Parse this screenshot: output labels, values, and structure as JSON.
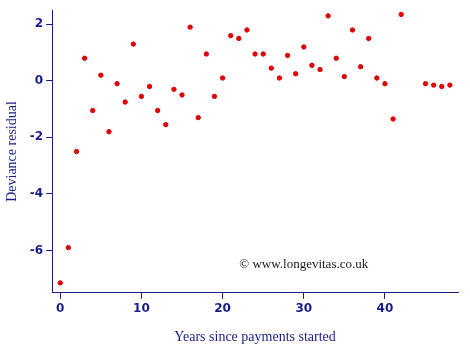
{
  "chart_data": {
    "type": "scatter",
    "x_label": "Years since payments started",
    "y_label": "Deviance residual",
    "annotation": "© www.longevitas.co.uk",
    "color": "#e00000",
    "marker": "circle",
    "grid": false,
    "x": [
      0,
      1,
      2,
      3,
      4,
      5,
      6,
      7,
      8,
      9,
      10,
      11,
      12,
      13,
      14,
      15,
      16,
      17,
      18,
      19,
      20,
      21,
      22,
      23,
      24,
      25,
      26,
      27,
      28,
      29,
      30,
      31,
      32,
      33,
      34,
      35,
      36,
      37,
      38,
      39,
      40,
      41,
      42,
      45,
      46,
      47,
      48
    ],
    "values": [
      -7.15,
      -5.9,
      -2.5,
      0.8,
      -1.05,
      0.2,
      -1.8,
      -0.1,
      -0.75,
      1.3,
      -0.55,
      -0.2,
      -1.05,
      -1.55,
      -0.3,
      -0.5,
      1.9,
      -1.3,
      0.95,
      -0.55,
      0.1,
      1.6,
      1.5,
      1.8,
      0.95,
      0.95,
      0.45,
      0.1,
      0.9,
      0.25,
      1.2,
      0.55,
      0.4,
      2.3,
      0.8,
      0.15,
      1.8,
      0.5,
      1.5,
      0.1,
      -0.1,
      -1.35,
      2.35,
      -0.1,
      -0.15,
      -0.2,
      -0.15
    ],
    "xlim": [
      -1,
      49
    ],
    "ylim": [
      -7.5,
      2.5
    ],
    "xticks": [
      0,
      10,
      20,
      30,
      40
    ],
    "yticks": [
      -6,
      -4,
      -2,
      0,
      2
    ]
  }
}
